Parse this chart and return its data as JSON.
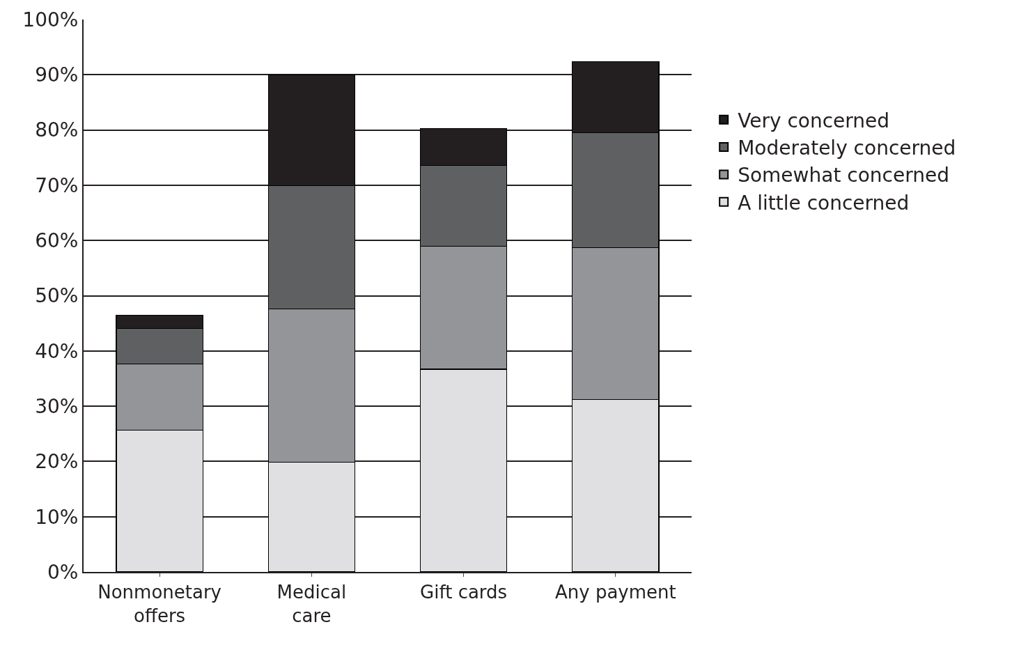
{
  "chart_data": {
    "type": "bar",
    "stacked": true,
    "categories": [
      "Nonmonetary\noffers",
      "Medical\ncare",
      "Gift cards",
      "Any payment"
    ],
    "series": [
      {
        "name": "A little concerned",
        "color": "#e0e0e2",
        "values": [
          25.7,
          19.9,
          36.7,
          31.2
        ]
      },
      {
        "name": "Somewhat concerned",
        "color": "#939598",
        "values": [
          11.9,
          27.7,
          22.3,
          27.5
        ]
      },
      {
        "name": "Moderately concerned",
        "color": "#5f6062",
        "values": [
          6.5,
          22.3,
          14.6,
          20.8
        ]
      },
      {
        "name": "Very concerned",
        "color": "#231f20",
        "values": [
          2.4,
          20.1,
          6.7,
          12.9
        ]
      }
    ],
    "ylim": [
      0,
      100
    ],
    "yticks": [
      {
        "value": 0,
        "label": "0%"
      },
      {
        "value": 10,
        "label": "10%"
      },
      {
        "value": 20,
        "label": "20%"
      },
      {
        "value": 30,
        "label": "30%"
      },
      {
        "value": 40,
        "label": "40%"
      },
      {
        "value": 50,
        "label": "50%"
      },
      {
        "value": 60,
        "label": "60%"
      },
      {
        "value": 70,
        "label": "70%"
      },
      {
        "value": 80,
        "label": "80%"
      },
      {
        "value": 90,
        "label": "90%"
      },
      {
        "value": 100,
        "label": "100%"
      }
    ],
    "grid": "y",
    "legend": "right"
  }
}
